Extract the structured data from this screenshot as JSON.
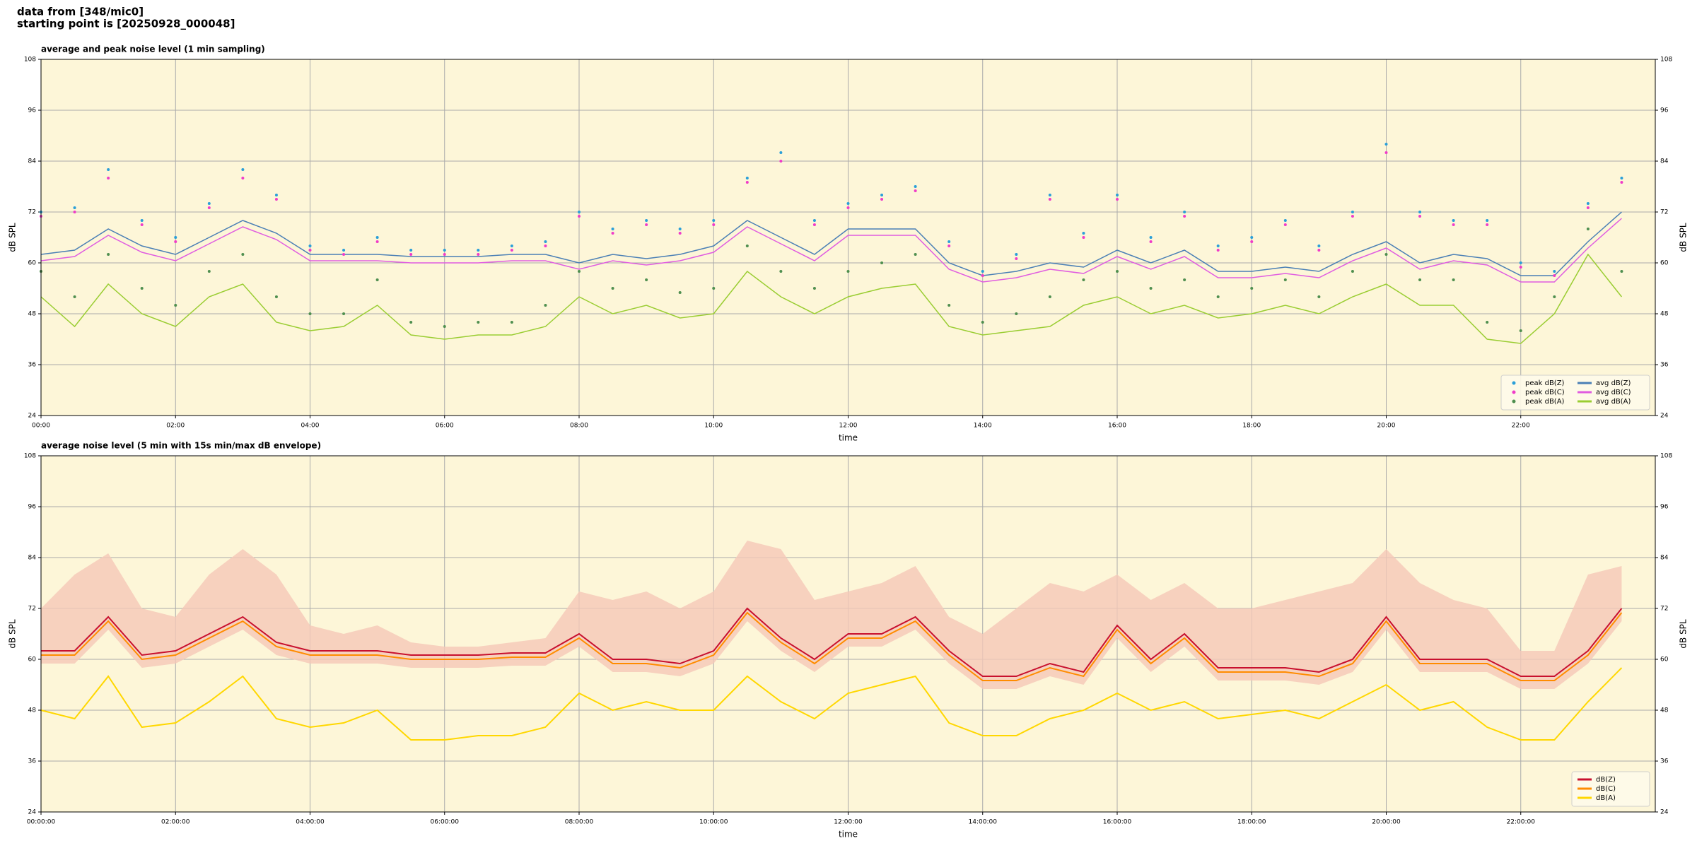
{
  "header": {
    "source": "data from [348/mic0]",
    "start": "starting point is [20250928_000048]"
  },
  "chart_data": [
    {
      "type": "line",
      "title": "average and peak noise level (1 min sampling)",
      "x_label": "time",
      "y_label": "dB SPL",
      "x": [
        0,
        0.5,
        1,
        1.5,
        2,
        2.5,
        3,
        3.5,
        4,
        4.5,
        5,
        5.5,
        6,
        6.5,
        7,
        7.5,
        8,
        8.5,
        9,
        9.5,
        10,
        10.5,
        11,
        11.5,
        12,
        12.5,
        13,
        13.5,
        14,
        14.5,
        15,
        15.5,
        16,
        16.5,
        17,
        17.5,
        18,
        18.5,
        19,
        19.5,
        20,
        20.5,
        21,
        21.5,
        22,
        22.5,
        23,
        23.5
      ],
      "xlim": [
        0,
        24
      ],
      "xticks": [
        {
          "value": 0,
          "label": "00:00"
        },
        {
          "value": 2,
          "label": "02:00"
        },
        {
          "value": 4,
          "label": "04:00"
        },
        {
          "value": 6,
          "label": "06:00"
        },
        {
          "value": 8,
          "label": "08:00"
        },
        {
          "value": 10,
          "label": "10:00"
        },
        {
          "value": 12,
          "label": "12:00"
        },
        {
          "value": 14,
          "label": "14:00"
        },
        {
          "value": 16,
          "label": "16:00"
        },
        {
          "value": 18,
          "label": "18:00"
        },
        {
          "value": 20,
          "label": "20:00"
        },
        {
          "value": 22,
          "label": "22:00"
        }
      ],
      "ylim": [
        24,
        108
      ],
      "yticks": [
        24,
        36,
        48,
        60,
        72,
        84,
        96,
        108
      ],
      "grid": true,
      "legend": "lower right",
      "legend_columns": 2,
      "series": [
        {
          "name": "peak dB(Z)",
          "color": "#2a9fd8",
          "style": "dot",
          "values": [
            72,
            73,
            82,
            70,
            66,
            74,
            82,
            76,
            64,
            63,
            66,
            63,
            63,
            63,
            64,
            65,
            72,
            68,
            70,
            68,
            70,
            80,
            86,
            70,
            74,
            76,
            78,
            65,
            58,
            62,
            76,
            67,
            76,
            66,
            72,
            64,
            66,
            70,
            64,
            72,
            88,
            72,
            70,
            70,
            60,
            58,
            74,
            80
          ]
        },
        {
          "name": "peak dB(C)",
          "color": "#f03cc8",
          "style": "dot",
          "values": [
            71,
            72,
            80,
            69,
            65,
            73,
            80,
            75,
            63,
            62,
            65,
            62,
            62,
            62,
            63,
            64,
            71,
            67,
            69,
            67,
            69,
            79,
            84,
            69,
            73,
            75,
            77,
            64,
            57,
            61,
            75,
            66,
            75,
            65,
            71,
            63,
            65,
            69,
            63,
            71,
            86,
            71,
            69,
            69,
            59,
            57,
            73,
            79
          ]
        },
        {
          "name": "peak dB(A)",
          "color": "#4f8f4f",
          "style": "dot",
          "values": [
            58,
            52,
            62,
            54,
            50,
            58,
            62,
            52,
            48,
            48,
            56,
            46,
            45,
            46,
            46,
            50,
            58,
            54,
            56,
            53,
            54,
            64,
            58,
            54,
            58,
            60,
            62,
            50,
            46,
            48,
            52,
            56,
            58,
            54,
            56,
            52,
            54,
            56,
            52,
            58,
            62,
            56,
            56,
            46,
            44,
            52,
            68,
            58
          ]
        },
        {
          "name": "avg dB(Z)",
          "color": "#4a7fb5",
          "style": "line",
          "values": [
            62,
            63,
            68,
            64,
            62,
            66,
            70,
            67,
            62,
            62,
            62,
            61.5,
            61.5,
            61.5,
            62,
            62,
            60,
            62,
            61,
            62,
            64,
            70,
            66,
            62,
            68,
            68,
            68,
            60,
            57,
            58,
            60,
            59,
            63,
            60,
            63,
            58,
            58,
            59,
            58,
            62,
            65,
            60,
            62,
            61,
            57,
            57,
            65,
            72
          ]
        },
        {
          "name": "avg dB(C)",
          "color": "#e05ce0",
          "style": "line",
          "values": [
            60.5,
            61.5,
            66.5,
            62.5,
            60.5,
            64.5,
            68.5,
            65.5,
            60.5,
            60.5,
            60.5,
            60,
            60,
            60,
            60.5,
            60.5,
            58.5,
            60.5,
            59.5,
            60.5,
            62.5,
            68.5,
            64.5,
            60.5,
            66.5,
            66.5,
            66.5,
            58.5,
            55.5,
            56.5,
            58.5,
            57.5,
            61.5,
            58.5,
            61.5,
            56.5,
            56.5,
            57.5,
            56.5,
            60.5,
            63.5,
            58.5,
            60.5,
            59.5,
            55.5,
            55.5,
            63.5,
            70.5
          ]
        },
        {
          "name": "avg dB(A)",
          "color": "#9acd32",
          "style": "line",
          "values": [
            52,
            45,
            55,
            48,
            45,
            52,
            55,
            46,
            44,
            45,
            50,
            43,
            42,
            43,
            43,
            45,
            52,
            48,
            50,
            47,
            48,
            58,
            52,
            48,
            52,
            54,
            55,
            45,
            43,
            44,
            45,
            50,
            52,
            48,
            50,
            47,
            48,
            50,
            48,
            52,
            55,
            50,
            50,
            42,
            41,
            48,
            62,
            52
          ]
        }
      ]
    },
    {
      "type": "line",
      "title": "average noise level (5 min with 15s min/max dB envelope)",
      "x_label": "time",
      "y_label": "dB SPL",
      "x": [
        0,
        0.5,
        1,
        1.5,
        2,
        2.5,
        3,
        3.5,
        4,
        4.5,
        5,
        5.5,
        6,
        6.5,
        7,
        7.5,
        8,
        8.5,
        9,
        9.5,
        10,
        10.5,
        11,
        11.5,
        12,
        12.5,
        13,
        13.5,
        14,
        14.5,
        15,
        15.5,
        16,
        16.5,
        17,
        17.5,
        18,
        18.5,
        19,
        19.5,
        20,
        20.5,
        21,
        21.5,
        22,
        22.5,
        23,
        23.5
      ],
      "xlim": [
        0,
        24
      ],
      "xticks": [
        {
          "value": 0,
          "label": "00:00:00"
        },
        {
          "value": 2,
          "label": "02:00:00"
        },
        {
          "value": 4,
          "label": "04:00:00"
        },
        {
          "value": 6,
          "label": "06:00:00"
        },
        {
          "value": 8,
          "label": "08:00:00"
        },
        {
          "value": 10,
          "label": "10:00:00"
        },
        {
          "value": 12,
          "label": "12:00:00"
        },
        {
          "value": 14,
          "label": "14:00:00"
        },
        {
          "value": 16,
          "label": "16:00:00"
        },
        {
          "value": 18,
          "label": "18:00:00"
        },
        {
          "value": 20,
          "label": "20:00:00"
        },
        {
          "value": 22,
          "label": "22:00:00"
        }
      ],
      "ylim": [
        24,
        108
      ],
      "yticks": [
        24,
        36,
        48,
        60,
        72,
        84,
        96,
        108
      ],
      "grid": true,
      "legend": "lower right",
      "legend_columns": 1,
      "envelope": {
        "color": "#f5c8b8",
        "upper": [
          72,
          80,
          85,
          72,
          70,
          80,
          86,
          80,
          68,
          66,
          68,
          64,
          63,
          63,
          64,
          65,
          76,
          74,
          76,
          72,
          76,
          88,
          86,
          74,
          76,
          78,
          82,
          70,
          66,
          72,
          78,
          76,
          80,
          74,
          78,
          72,
          72,
          74,
          76,
          78,
          86,
          78,
          74,
          72,
          62,
          62,
          80,
          82
        ],
        "lower": [
          59,
          59,
          67,
          58,
          59,
          63,
          67,
          61,
          59,
          59,
          59,
          58,
          58,
          58,
          58.5,
          58.5,
          63,
          57,
          57,
          56,
          59,
          69,
          62,
          57,
          63,
          63,
          67,
          59,
          53,
          53,
          56,
          54,
          65,
          57,
          63,
          55,
          55,
          55,
          54,
          57,
          67,
          57,
          57,
          57,
          53,
          53,
          59,
          69
        ]
      },
      "series": [
        {
          "name": "dB(Z)",
          "color": "#c8102e",
          "style": "line",
          "values": [
            62,
            62,
            70,
            61,
            62,
            66,
            70,
            64,
            62,
            62,
            62,
            61,
            61,
            61,
            61.5,
            61.5,
            66,
            60,
            60,
            59,
            62,
            72,
            65,
            60,
            66,
            66,
            70,
            62,
            56,
            56,
            59,
            57,
            68,
            60,
            66,
            58,
            58,
            58,
            57,
            60,
            70,
            60,
            60,
            60,
            56,
            56,
            62,
            72
          ]
        },
        {
          "name": "dB(C)",
          "color": "#ff8c00",
          "style": "line",
          "values": [
            61,
            61,
            69,
            60,
            61,
            65,
            69,
            63,
            61,
            61,
            61,
            60,
            60,
            60,
            60.5,
            60.5,
            65,
            59,
            59,
            58,
            61,
            71,
            64,
            59,
            65,
            65,
            69,
            61,
            55,
            55,
            58,
            56,
            67,
            59,
            65,
            57,
            57,
            57,
            56,
            59,
            69,
            59,
            59,
            59,
            55,
            55,
            61,
            71
          ]
        },
        {
          "name": "dB(A)",
          "color": "#ffd700",
          "style": "line",
          "values": [
            48,
            46,
            56,
            44,
            45,
            50,
            56,
            46,
            44,
            45,
            48,
            41,
            41,
            42,
            42,
            44,
            52,
            48,
            50,
            48,
            48,
            56,
            50,
            46,
            52,
            54,
            56,
            45,
            42,
            42,
            46,
            48,
            52,
            48,
            50,
            46,
            47,
            48,
            46,
            50,
            54,
            48,
            50,
            44,
            41,
            41,
            50,
            58
          ]
        }
      ]
    }
  ]
}
